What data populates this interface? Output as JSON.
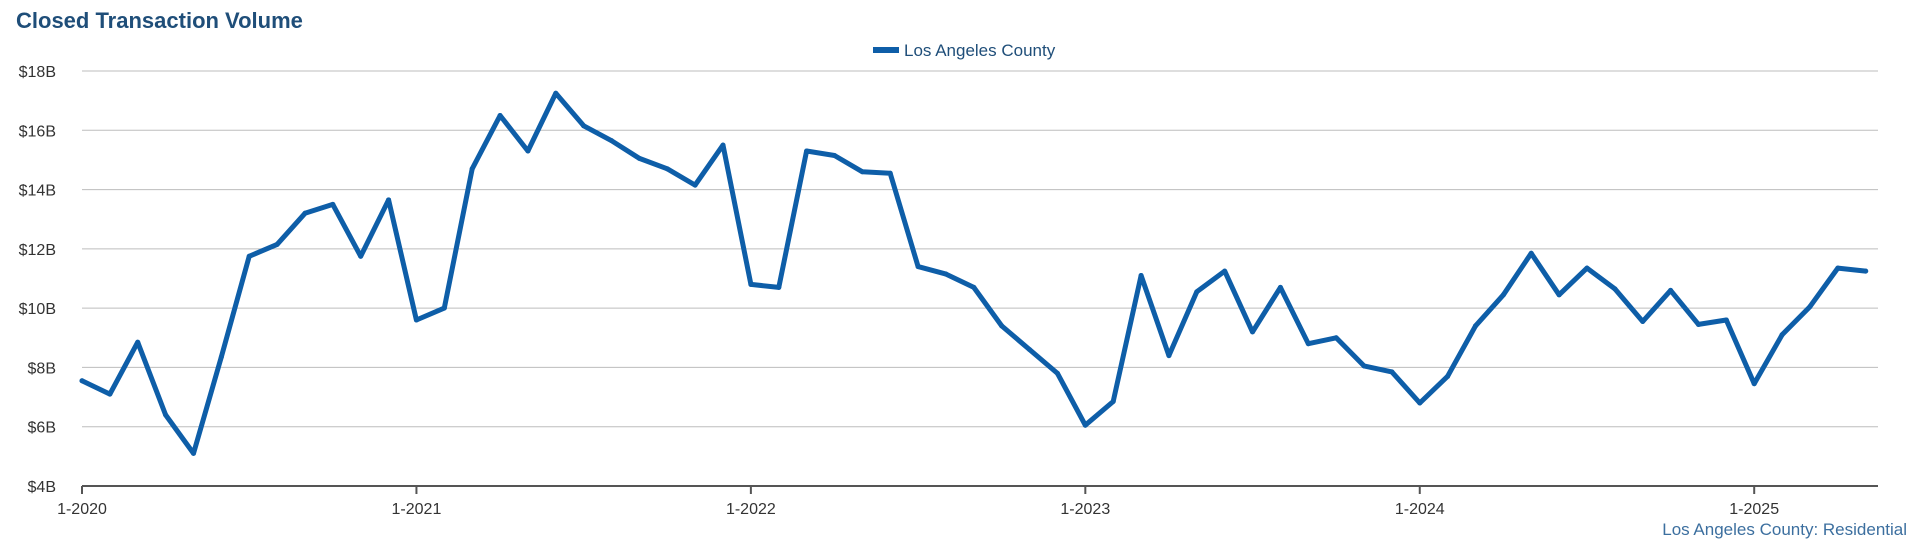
{
  "title": "Closed Transaction Volume",
  "source_label": "Los Angeles County: Residential",
  "chart_data": {
    "type": "line",
    "title": "Closed Transaction Volume",
    "xlabel": "",
    "ylabel": "",
    "ylim": [
      4,
      18
    ],
    "y_ticks": [
      {
        "value": 4,
        "label": "$4B"
      },
      {
        "value": 6,
        "label": "$6B"
      },
      {
        "value": 8,
        "label": "$8B"
      },
      {
        "value": 10,
        "label": "$10B"
      },
      {
        "value": 12,
        "label": "$12B"
      },
      {
        "value": 14,
        "label": "$14B"
      },
      {
        "value": 16,
        "label": "$16B"
      },
      {
        "value": 18,
        "label": "$18B"
      }
    ],
    "x_start": "1-2020",
    "x_ticks": [
      {
        "month_index": 0,
        "label": "1-2020"
      },
      {
        "month_index": 12,
        "label": "1-2021"
      },
      {
        "month_index": 24,
        "label": "1-2022"
      },
      {
        "month_index": 36,
        "label": "1-2023"
      },
      {
        "month_index": 48,
        "label": "1-2024"
      },
      {
        "month_index": 60,
        "label": "1-2025"
      }
    ],
    "grid": true,
    "legend_position": "top-center",
    "series": [
      {
        "name": "Los Angeles County",
        "color": "#0e5ea8",
        "values": [
          7.55,
          7.1,
          8.85,
          6.4,
          5.1,
          8.35,
          11.75,
          12.15,
          13.2,
          13.5,
          11.75,
          13.65,
          9.6,
          10.0,
          14.7,
          16.5,
          15.3,
          17.25,
          16.15,
          15.65,
          15.05,
          14.7,
          14.15,
          15.5,
          10.8,
          10.7,
          15.3,
          15.15,
          14.6,
          14.55,
          11.4,
          11.15,
          10.7,
          9.4,
          8.6,
          7.8,
          6.05,
          6.85,
          11.1,
          8.4,
          10.55,
          11.25,
          9.2,
          10.7,
          8.8,
          9.0,
          8.05,
          7.85,
          6.8,
          7.7,
          9.4,
          10.45,
          11.85,
          10.45,
          11.35,
          10.65,
          9.55,
          10.6,
          9.45,
          9.6,
          7.45,
          9.1,
          10.05,
          11.35,
          11.25
        ]
      }
    ]
  }
}
